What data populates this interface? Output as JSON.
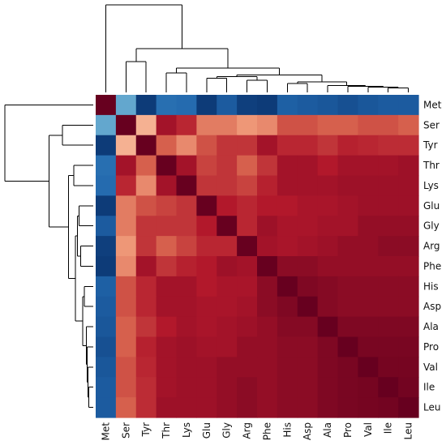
{
  "chart_data": {
    "type": "heatmap",
    "title": "",
    "xlabel": "",
    "ylabel": "",
    "labels": [
      "Met",
      "Ser",
      "Tyr",
      "Thr",
      "Lys",
      "Glu",
      "Gly",
      "Arg",
      "Phe",
      "His",
      "Asp",
      "Ala",
      "Pro",
      "Val",
      "Ile",
      "Leu"
    ],
    "row_labels": [
      "Met",
      "Ser",
      "Tyr",
      "Thr",
      "Lys",
      "Glu",
      "Gly",
      "Arg",
      "Phe",
      "His",
      "Asp",
      "Ala",
      "Pro",
      "Val",
      "Ile",
      "Leu"
    ],
    "col_labels": [
      "Met",
      "Ser",
      "Tyr",
      "Thr",
      "Lys",
      "Glu",
      "Gly",
      "Arg",
      "Phe",
      "His",
      "Asp",
      "Ala",
      "Pro",
      "Val",
      "Ile",
      "Leu"
    ],
    "color_range": [
      -1,
      1
    ],
    "colormap": "RdBu_r",
    "colormap_stops": [
      "#08306b",
      "#2166ac",
      "#4393c3",
      "#92c5de",
      "#fbe0d0",
      "#f4a582",
      "#d6604d",
      "#b2182b",
      "#67001f"
    ],
    "matrix": [
      [
        1.0,
        -0.4,
        -0.95,
        -0.7,
        -0.72,
        -0.95,
        -0.8,
        -0.93,
        -0.95,
        -0.78,
        -0.8,
        -0.82,
        -0.85,
        -0.82,
        -0.8,
        -0.8
      ],
      [
        -0.4,
        1.0,
        0.2,
        0.8,
        0.7,
        0.4,
        0.4,
        0.3,
        0.35,
        0.55,
        0.55,
        0.5,
        0.5,
        0.55,
        0.55,
        0.5
      ],
      [
        -0.95,
        0.2,
        1.0,
        0.5,
        0.35,
        0.55,
        0.65,
        0.65,
        0.8,
        0.7,
        0.7,
        0.65,
        0.72,
        0.7,
        0.68,
        0.68
      ],
      [
        -0.7,
        0.8,
        0.5,
        1.0,
        0.8,
        0.6,
        0.65,
        0.5,
        0.65,
        0.8,
        0.8,
        0.75,
        0.8,
        0.8,
        0.8,
        0.82
      ],
      [
        -0.72,
        0.7,
        0.35,
        0.8,
        1.0,
        0.65,
        0.65,
        0.6,
        0.72,
        0.8,
        0.8,
        0.8,
        0.82,
        0.82,
        0.82,
        0.82
      ],
      [
        -0.95,
        0.4,
        0.55,
        0.6,
        0.65,
        1.0,
        0.75,
        0.7,
        0.75,
        0.75,
        0.78,
        0.78,
        0.8,
        0.82,
        0.82,
        0.82
      ],
      [
        -0.8,
        0.4,
        0.65,
        0.65,
        0.65,
        0.75,
        1.0,
        0.7,
        0.82,
        0.78,
        0.78,
        0.8,
        0.8,
        0.85,
        0.85,
        0.85
      ],
      [
        -0.93,
        0.3,
        0.65,
        0.5,
        0.6,
        0.7,
        0.7,
        1.0,
        0.8,
        0.78,
        0.8,
        0.82,
        0.85,
        0.85,
        0.88,
        0.88
      ],
      [
        -0.95,
        0.35,
        0.8,
        0.65,
        0.72,
        0.75,
        0.82,
        0.8,
        1.0,
        0.88,
        0.88,
        0.85,
        0.85,
        0.85,
        0.85,
        0.85
      ],
      [
        -0.78,
        0.55,
        0.7,
        0.8,
        0.8,
        0.75,
        0.78,
        0.78,
        0.88,
        1.0,
        0.92,
        0.9,
        0.88,
        0.88,
        0.88,
        0.88
      ],
      [
        -0.8,
        0.55,
        0.7,
        0.8,
        0.8,
        0.78,
        0.78,
        0.8,
        0.88,
        0.92,
        1.0,
        0.9,
        0.88,
        0.88,
        0.88,
        0.88
      ],
      [
        -0.82,
        0.5,
        0.65,
        0.75,
        0.8,
        0.78,
        0.8,
        0.82,
        0.85,
        0.9,
        0.9,
        1.0,
        0.92,
        0.92,
        0.92,
        0.92
      ],
      [
        -0.85,
        0.5,
        0.72,
        0.8,
        0.82,
        0.8,
        0.8,
        0.85,
        0.85,
        0.88,
        0.88,
        0.92,
        1.0,
        0.94,
        0.94,
        0.94
      ],
      [
        -0.82,
        0.55,
        0.7,
        0.8,
        0.82,
        0.82,
        0.85,
        0.85,
        0.85,
        0.88,
        0.88,
        0.92,
        0.94,
        1.0,
        0.95,
        0.95
      ],
      [
        -0.8,
        0.55,
        0.68,
        0.8,
        0.82,
        0.82,
        0.85,
        0.88,
        0.85,
        0.88,
        0.88,
        0.92,
        0.94,
        0.95,
        1.0,
        0.96
      ],
      [
        -0.8,
        0.5,
        0.68,
        0.82,
        0.82,
        0.82,
        0.85,
        0.88,
        0.85,
        0.88,
        0.88,
        0.92,
        0.94,
        0.95,
        0.96,
        1.0
      ]
    ],
    "dendrogram": {
      "leaf_order": [
        "Met",
        "Ser",
        "Tyr",
        "Thr",
        "Lys",
        "Glu",
        "Gly",
        "Arg",
        "Phe",
        "His",
        "Asp",
        "Ala",
        "Pro",
        "Val",
        "Ile",
        "Leu"
      ],
      "merges": [
        {
          "a": 14,
          "b": 15,
          "height": 0.05
        },
        {
          "a": 13,
          "b": 16,
          "height": 0.06
        },
        {
          "a": 12,
          "b": 17,
          "height": 0.07
        },
        {
          "a": 11,
          "b": 18,
          "height": 0.08
        },
        {
          "a": 9,
          "b": 10,
          "height": 0.1
        },
        {
          "a": 20,
          "b": 19,
          "height": 0.12
        },
        {
          "a": 7,
          "b": 8,
          "height": 0.14
        },
        {
          "a": 5,
          "b": 6,
          "height": 0.16
        },
        {
          "a": 22,
          "b": 23,
          "height": 0.18
        },
        {
          "a": 24,
          "b": 21,
          "height": 0.2
        },
        {
          "a": 3,
          "b": 4,
          "height": 0.22
        },
        {
          "a": 26,
          "b": 25,
          "height": 0.28
        },
        {
          "a": 1,
          "b": 2,
          "height": 0.35
        },
        {
          "a": 28,
          "b": 27,
          "height": 0.5
        },
        {
          "a": 0,
          "b": 29,
          "height": 1.0
        }
      ]
    }
  }
}
